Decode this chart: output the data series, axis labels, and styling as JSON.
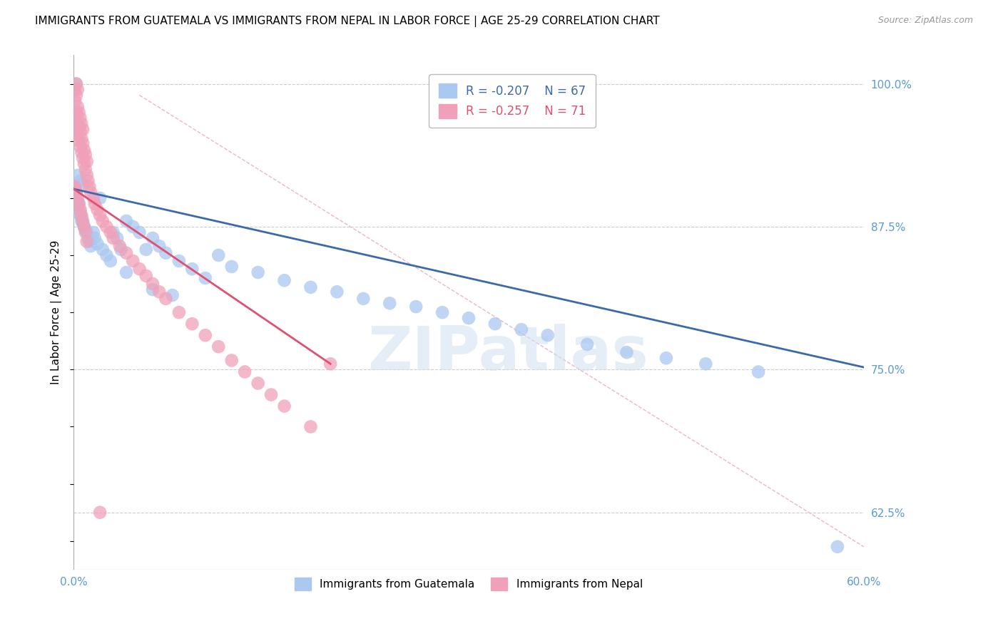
{
  "title": "IMMIGRANTS FROM GUATEMALA VS IMMIGRANTS FROM NEPAL IN LABOR FORCE | AGE 25-29 CORRELATION CHART",
  "source": "Source: ZipAtlas.com",
  "ylabel": "In Labor Force | Age 25-29",
  "xlim": [
    0.0,
    0.6
  ],
  "ylim": [
    0.575,
    1.025
  ],
  "xtick_vals": [
    0.0,
    0.1,
    0.2,
    0.3,
    0.4,
    0.5,
    0.6
  ],
  "xtick_labels": [
    "0.0%",
    "",
    "",
    "",
    "",
    "",
    "60.0%"
  ],
  "ytick_vals_right": [
    1.0,
    0.875,
    0.75,
    0.625
  ],
  "ytick_labels_right": [
    "100.0%",
    "87.5%",
    "75.0%",
    "62.5%"
  ],
  "legend_r_blue": "R = -0.207",
  "legend_n_blue": "N = 67",
  "legend_r_pink": "R = -0.257",
  "legend_n_pink": "N = 71",
  "blue_color": "#aac8f0",
  "blue_line_color": "#3a6aad",
  "pink_color": "#f0a0b8",
  "pink_line_color": "#e05070",
  "watermark": "ZIPatlas",
  "grid_color": "#cccccc",
  "axis_label_color": "#5b9bd5",
  "title_fontsize": 11,
  "blue_trend_x": [
    0.0,
    0.6
  ],
  "blue_trend_y": [
    0.908,
    0.752
  ],
  "pink_trend_x": [
    0.0,
    0.195
  ],
  "pink_trend_y": [
    0.908,
    0.755
  ],
  "diag_line_x": [
    0.05,
    0.6
  ],
  "diag_line_y": [
    0.99,
    0.595
  ],
  "blue_scatter_x": [
    0.001,
    0.001,
    0.002,
    0.002,
    0.002,
    0.003,
    0.003,
    0.004,
    0.004,
    0.005,
    0.005,
    0.006,
    0.006,
    0.007,
    0.008,
    0.009,
    0.01,
    0.011,
    0.012,
    0.013,
    0.015,
    0.016,
    0.018,
    0.02,
    0.022,
    0.025,
    0.028,
    0.03,
    0.033,
    0.036,
    0.04,
    0.045,
    0.05,
    0.055,
    0.06,
    0.065,
    0.07,
    0.08,
    0.09,
    0.1,
    0.11,
    0.12,
    0.14,
    0.16,
    0.18,
    0.2,
    0.22,
    0.24,
    0.26,
    0.28,
    0.3,
    0.32,
    0.34,
    0.36,
    0.39,
    0.42,
    0.45,
    0.48,
    0.52,
    0.58,
    0.003,
    0.005,
    0.007,
    0.04,
    0.06,
    0.075,
    0.64
  ],
  "blue_scatter_y": [
    0.907,
    0.91,
    0.905,
    0.9,
    1.0,
    0.897,
    0.893,
    0.895,
    0.89,
    0.888,
    0.885,
    0.883,
    0.88,
    0.878,
    0.875,
    0.872,
    0.87,
    0.865,
    0.862,
    0.858,
    0.87,
    0.865,
    0.86,
    0.9,
    0.855,
    0.85,
    0.845,
    0.87,
    0.865,
    0.855,
    0.88,
    0.875,
    0.87,
    0.855,
    0.865,
    0.858,
    0.852,
    0.845,
    0.838,
    0.83,
    0.85,
    0.84,
    0.835,
    0.828,
    0.822,
    0.818,
    0.812,
    0.808,
    0.805,
    0.8,
    0.795,
    0.79,
    0.785,
    0.78,
    0.772,
    0.765,
    0.76,
    0.755,
    0.748,
    0.595,
    0.92,
    0.915,
    0.912,
    0.835,
    0.82,
    0.815,
    0.6
  ],
  "pink_scatter_x": [
    0.001,
    0.001,
    0.001,
    0.001,
    0.002,
    0.002,
    0.002,
    0.002,
    0.003,
    0.003,
    0.003,
    0.003,
    0.004,
    0.004,
    0.004,
    0.005,
    0.005,
    0.005,
    0.006,
    0.006,
    0.006,
    0.007,
    0.007,
    0.007,
    0.008,
    0.008,
    0.009,
    0.009,
    0.01,
    0.01,
    0.011,
    0.012,
    0.013,
    0.015,
    0.016,
    0.018,
    0.02,
    0.022,
    0.025,
    0.028,
    0.03,
    0.035,
    0.04,
    0.045,
    0.05,
    0.055,
    0.06,
    0.065,
    0.07,
    0.08,
    0.09,
    0.1,
    0.11,
    0.12,
    0.13,
    0.14,
    0.15,
    0.16,
    0.18,
    0.195,
    0.001,
    0.002,
    0.003,
    0.004,
    0.005,
    0.006,
    0.007,
    0.008,
    0.009,
    0.01,
    0.02
  ],
  "pink_scatter_y": [
    0.91,
    0.97,
    0.985,
    0.995,
    0.96,
    0.975,
    0.99,
    1.0,
    0.955,
    0.965,
    0.98,
    0.995,
    0.95,
    0.962,
    0.975,
    0.945,
    0.958,
    0.97,
    0.94,
    0.952,
    0.965,
    0.935,
    0.948,
    0.96,
    0.93,
    0.942,
    0.925,
    0.938,
    0.92,
    0.932,
    0.915,
    0.91,
    0.905,
    0.9,
    0.895,
    0.89,
    0.885,
    0.88,
    0.875,
    0.87,
    0.865,
    0.858,
    0.852,
    0.845,
    0.838,
    0.832,
    0.825,
    0.818,
    0.812,
    0.8,
    0.79,
    0.78,
    0.77,
    0.758,
    0.748,
    0.738,
    0.728,
    0.718,
    0.7,
    0.755,
    0.908,
    0.905,
    0.9,
    0.895,
    0.89,
    0.885,
    0.88,
    0.875,
    0.87,
    0.862,
    0.625
  ]
}
